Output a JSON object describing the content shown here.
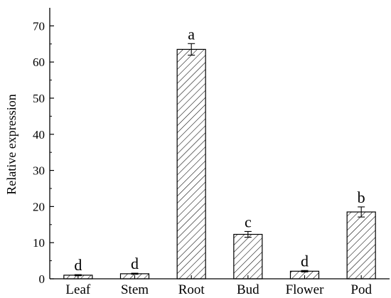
{
  "chart_data": {
    "type": "bar",
    "title": "",
    "xlabel": "",
    "ylabel": "Relative expression",
    "ylim": [
      0,
      75
    ],
    "yticks": [
      0,
      10,
      20,
      30,
      40,
      50,
      60,
      70
    ],
    "grid": false,
    "categories": [
      "Leaf",
      "Stem",
      "Root",
      "Bud",
      "Flower",
      "Pod"
    ],
    "values": [
      1.0,
      1.4,
      63.5,
      12.3,
      2.1,
      18.5
    ],
    "errors": [
      0.15,
      0.15,
      1.6,
      0.8,
      0.2,
      1.4
    ],
    "significance": [
      "d",
      "d",
      "a",
      "c",
      "d",
      "b"
    ],
    "bar_style": "diagonal hatch",
    "bar_color": "#000000"
  }
}
